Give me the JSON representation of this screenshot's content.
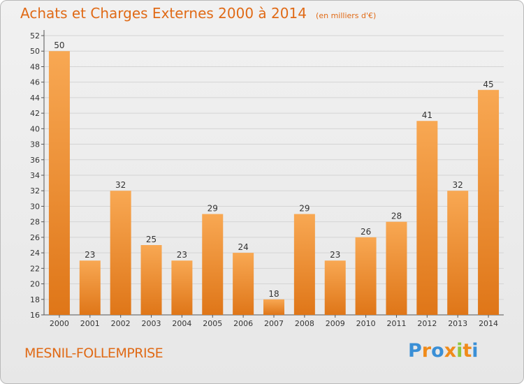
{
  "header": {
    "title": "Achats et Charges Externes 2000 à 2014",
    "unit": "(en milliers d'€)"
  },
  "footer": {
    "commune": "MESNIL-FOLLEMPRISE",
    "brand": "Proxiti",
    "brand_colors": [
      "#3a8fd6",
      "#f08b1a",
      "#3a8fd6",
      "#f08b1a",
      "#8ec63f",
      "#f08b1a",
      "#3a8fd6"
    ]
  },
  "colors": {
    "accent": "#e06a16",
    "bar_top": "#f8a853",
    "bar_bottom": "#df7618",
    "grid": "#d4d4d4"
  },
  "chart_data": {
    "type": "bar",
    "categories": [
      "2000",
      "2001",
      "2002",
      "2003",
      "2004",
      "2005",
      "2006",
      "2007",
      "2008",
      "2009",
      "2010",
      "2011",
      "2012",
      "2013",
      "2014"
    ],
    "values": [
      50,
      23,
      32,
      25,
      23,
      29,
      24,
      18,
      29,
      23,
      26,
      28,
      41,
      32,
      45
    ],
    "ylim": [
      16,
      52
    ],
    "yticks": [
      16,
      18,
      20,
      22,
      24,
      26,
      28,
      30,
      32,
      34,
      36,
      38,
      40,
      42,
      44,
      46,
      48,
      50,
      52
    ],
    "grid": true,
    "data_labels": true
  }
}
